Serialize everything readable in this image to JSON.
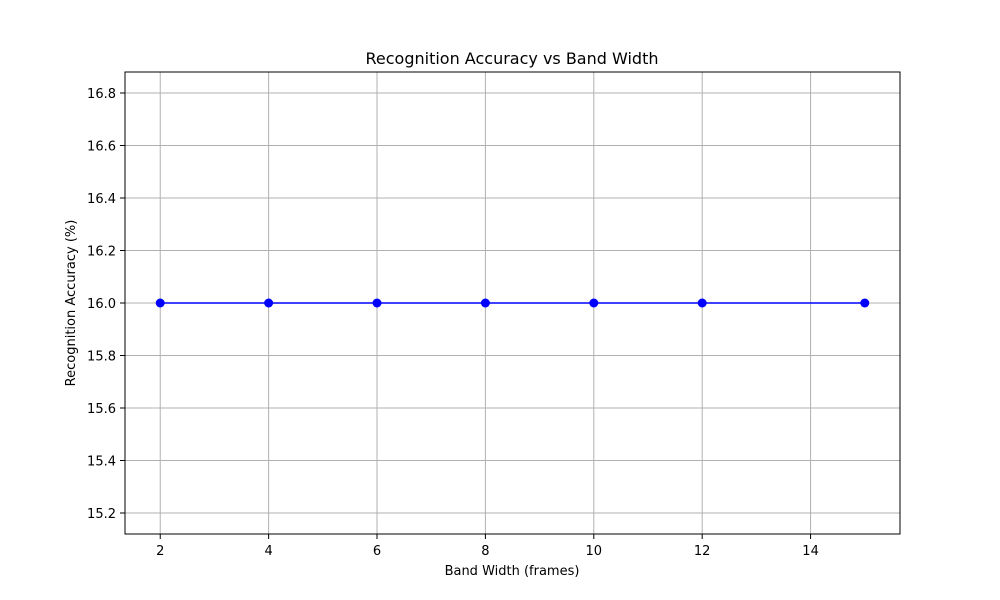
{
  "chart_data": {
    "type": "line",
    "title": "Recognition Accuracy vs Band Width",
    "xlabel": "Band Width (frames)",
    "ylabel": "Recognition Accuracy (%)",
    "x": [
      2,
      4,
      6,
      8,
      10,
      12,
      15
    ],
    "series": [
      {
        "values": [
          16.0,
          16.0,
          16.0,
          16.0,
          16.0,
          16.0,
          16.0
        ],
        "color": "#0000ff",
        "marker": "circle"
      }
    ],
    "xlim": [
      1.35,
      15.65
    ],
    "ylim": [
      15.12,
      16.88
    ],
    "xticks": [
      2,
      4,
      6,
      8,
      10,
      12,
      14
    ],
    "yticks": [
      15.2,
      15.4,
      15.6,
      15.8,
      16.0,
      16.2,
      16.4,
      16.6,
      16.8
    ],
    "grid": true
  }
}
